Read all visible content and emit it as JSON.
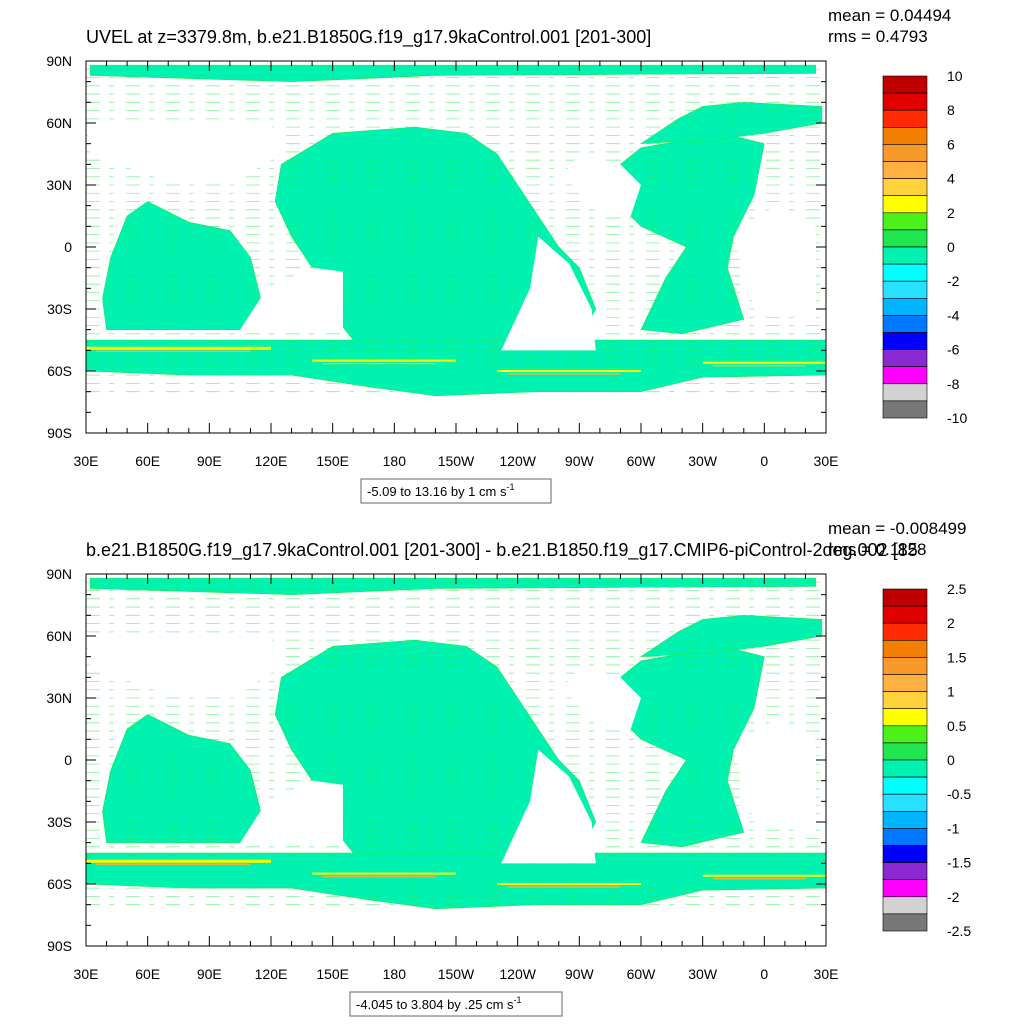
{
  "chart_data": [
    {
      "type": "heatmap",
      "title": "UVEL at z=3379.8m, b.e21.B1850G.f19_g17.9kaControl.001 [201-300]",
      "stats": [
        "mean = 0.04494",
        "rms = 0.4793"
      ],
      "xlabels": [
        "30E",
        "60E",
        "90E",
        "120E",
        "150E",
        "180",
        "150W",
        "120W",
        "90W",
        "60W",
        "30W",
        "0",
        "30E"
      ],
      "ylabels": [
        "90N",
        "60N",
        "30N",
        "0",
        "30S",
        "60S",
        "90S"
      ],
      "xlim": [
        30,
        390
      ],
      "ylim": [
        -90,
        90
      ],
      "range_label": "-5.09 to 13.16 by 1 cm s",
      "range_unit_sup": "-1",
      "colorbar": {
        "labels": [
          "10",
          "8",
          "6",
          "4",
          "2",
          "0",
          "-2",
          "-4",
          "-6",
          "-8",
          "-10"
        ],
        "colors": [
          "#c00000",
          "#e00000",
          "#ff2a00",
          "#f27f00",
          "#f79a2a",
          "#ffb040",
          "#ffd23c",
          "#ffff00",
          "#4cf11a",
          "#22e650",
          "#00f2b0",
          "#00ffff",
          "#28e0ff",
          "#00b4ff",
          "#0078ff",
          "#0000ff",
          "#8a28d2",
          "#ff00ff",
          "#d2d2d2",
          "#787878"
        ],
        "min": -10,
        "max": 10,
        "interval": 1
      }
    },
    {
      "type": "heatmap",
      "title": "b.e21.B1850G.f19_g17.9kaControl.001 [201-300] - b.e21.B1850.f19_g17.CMIP6-piControl-2deg.002 [85",
      "stats": [
        "mean = -0.008499",
        "rms = 0.1128"
      ],
      "xlabels": [
        "30E",
        "60E",
        "90E",
        "120E",
        "150E",
        "180",
        "150W",
        "120W",
        "90W",
        "60W",
        "30W",
        "0",
        "30E"
      ],
      "ylabels": [
        "90N",
        "60N",
        "30N",
        "0",
        "30S",
        "60S",
        "90S"
      ],
      "xlim": [
        30,
        390
      ],
      "ylim": [
        -90,
        90
      ],
      "range_label": "-4.045 to 3.804 by .25 cm s",
      "range_unit_sup": "-1",
      "colorbar": {
        "labels": [
          "2.5",
          "2",
          "1.5",
          "1",
          "0.5",
          "0",
          "-0.5",
          "-1",
          "-1.5",
          "-2",
          "-2.5"
        ],
        "colors": [
          "#c00000",
          "#e00000",
          "#ff2a00",
          "#f27f00",
          "#f79a2a",
          "#ffb040",
          "#ffd23c",
          "#ffff00",
          "#4cf11a",
          "#22e650",
          "#00f2b0",
          "#00ffff",
          "#28e0ff",
          "#00b4ff",
          "#0078ff",
          "#0000ff",
          "#8a28d2",
          "#ff00ff",
          "#d2d2d2",
          "#787878"
        ],
        "min": -2.5,
        "max": 2.5,
        "interval": 0.25
      }
    }
  ],
  "palette": {
    "background_zero_band": "#00f2b0",
    "positive_small": "#22e650",
    "land_missing": "#ffffff"
  }
}
